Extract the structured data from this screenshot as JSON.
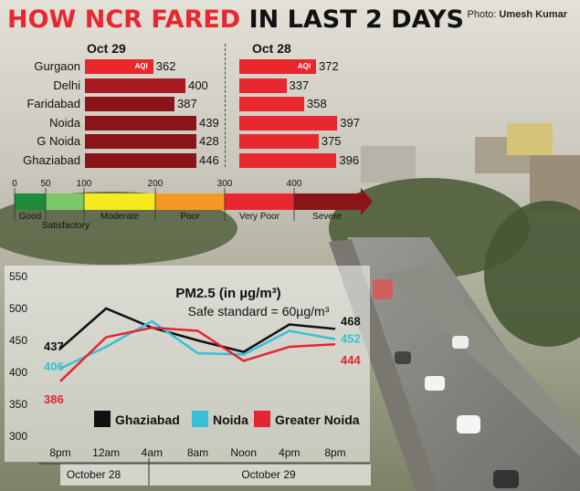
{
  "header": {
    "title_part1": "HOW NCR FARED",
    "title_part2": "IN LAST 2 DAYS",
    "credit_prefix": "Photo:",
    "credit_name": "Umesh Kumar"
  },
  "colors": {
    "accent_red": "#e8282e",
    "dark_red": "#8b1418",
    "good": "#1f8a3a",
    "satisfactory": "#7cc66a",
    "moderate": "#f4ea1d",
    "poor": "#f49a24",
    "very_poor": "#e8282e",
    "severe": "#8b1418",
    "ghaziabad": "#111111",
    "noida": "#38c0d8",
    "greater_noida": "#e42534"
  },
  "aqi_panel": {
    "aqi_tag": "AQI",
    "columns": [
      {
        "date": "Oct 29",
        "values": [
          362,
          400,
          387,
          439,
          428,
          446
        ]
      },
      {
        "date": "Oct 28",
        "values": [
          372,
          337,
          358,
          397,
          375,
          396
        ]
      }
    ],
    "cities": [
      "Gurgaon",
      "Delhi",
      "Faridabad",
      "Noida",
      "G Noida",
      "Ghaziabad"
    ],
    "scale": {
      "ticks": [
        "0",
        "50",
        "100",
        "200",
        "300",
        "400"
      ],
      "categories": [
        "Good",
        "Satisfactory",
        "Moderate",
        "Poor",
        "Very Poor",
        "Severe"
      ]
    }
  },
  "chart_data": {
    "type": "line",
    "title": "PM2.5 (in µg/m³)",
    "subtitle": "Safe standard = 60µg/m³",
    "x": [
      "8pm",
      "12am",
      "4am",
      "8am",
      "Noon",
      "4pm",
      "8pm"
    ],
    "x_groups": [
      {
        "label": "October 28",
        "span": [
          "8pm",
          "12am"
        ]
      },
      {
        "label": "October 29",
        "span": [
          "4am",
          "8pm"
        ]
      }
    ],
    "ylim": [
      300,
      550
    ],
    "yticks": [
      300,
      350,
      400,
      450,
      500,
      550
    ],
    "series": [
      {
        "name": "Ghaziabad",
        "values": [
          437,
          500,
          470,
          450,
          432,
          475,
          468
        ],
        "start_label": "437",
        "end_label": "468"
      },
      {
        "name": "Noida",
        "values": [
          406,
          440,
          480,
          430,
          428,
          465,
          452
        ],
        "start_label": "406",
        "end_label": "452"
      },
      {
        "name": "Greater Noida",
        "values": [
          386,
          455,
          470,
          465,
          418,
          440,
          444
        ],
        "start_label": "386",
        "end_label": "444"
      }
    ],
    "legend_position": "bottom"
  }
}
